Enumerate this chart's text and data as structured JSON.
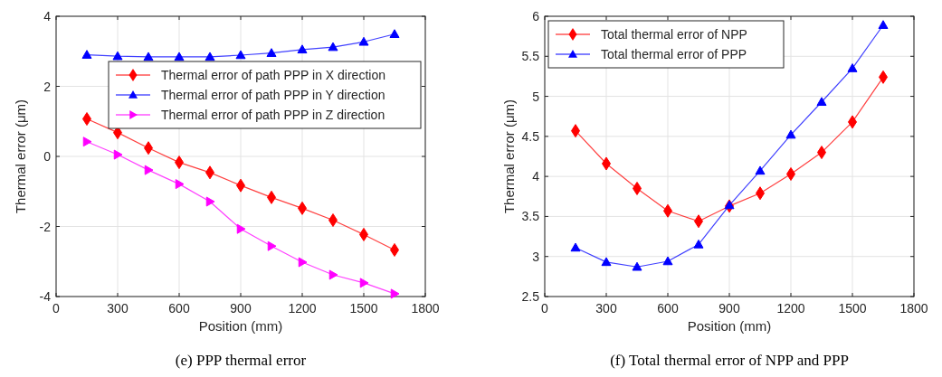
{
  "chart_data": [
    {
      "type": "line",
      "title": "(e) PPP thermal error",
      "xlabel": "Position (mm)",
      "ylabel": "Thermal error (μm)",
      "x": [
        150,
        300,
        450,
        600,
        750,
        900,
        1050,
        1200,
        1350,
        1500,
        1650
      ],
      "xlim": [
        0,
        1800
      ],
      "xticks": [
        0,
        300,
        600,
        900,
        1200,
        1500,
        1800
      ],
      "ylim": [
        -4,
        4
      ],
      "yticks": [
        -4,
        -2,
        0,
        2,
        4
      ],
      "grid": true,
      "legend": "top right",
      "series": [
        {
          "name": "Thermal error of path PPP in X direction",
          "color": "#ff0000",
          "marker": "diamond",
          "values": [
            1.07,
            0.68,
            0.24,
            -0.17,
            -0.46,
            -0.83,
            -1.17,
            -1.48,
            -1.82,
            -2.23,
            -2.67
          ]
        },
        {
          "name": "Thermal error of path PPP in Y direction",
          "color": "#0000ff",
          "marker": "triangle",
          "values": [
            2.9,
            2.86,
            2.84,
            2.84,
            2.84,
            2.89,
            2.95,
            3.05,
            3.12,
            3.27,
            3.49
          ]
        },
        {
          "name": "Thermal error of path PPP in Z direction",
          "color": "#ff00ff",
          "marker": "triangle-right",
          "values": [
            0.42,
            0.05,
            -0.39,
            -0.79,
            -1.29,
            -2.07,
            -2.56,
            -3.02,
            -3.38,
            -3.61,
            -3.92
          ]
        }
      ]
    },
    {
      "type": "line",
      "title": "(f) Total thermal error of NPP and PPP",
      "xlabel": "Position (mm)",
      "ylabel": "Thermal error  (μm)",
      "x": [
        150,
        300,
        450,
        600,
        750,
        900,
        1050,
        1200,
        1350,
        1500,
        1650
      ],
      "xlim": [
        0,
        1800
      ],
      "xticks": [
        0,
        300,
        600,
        900,
        1200,
        1500,
        1800
      ],
      "ylim": [
        2.5,
        6
      ],
      "yticks": [
        2.5,
        3,
        3.5,
        4,
        4.5,
        5,
        5.5,
        6
      ],
      "grid": true,
      "legend": "top left",
      "series": [
        {
          "name": "Total thermal error of NPP",
          "color": "#ff0000",
          "marker": "diamond",
          "values": [
            4.57,
            4.16,
            3.85,
            3.57,
            3.44,
            3.63,
            3.79,
            4.03,
            4.3,
            4.68,
            5.24
          ]
        },
        {
          "name": "Total thermal error of PPP",
          "color": "#0000ff",
          "marker": "triangle",
          "values": [
            3.11,
            2.93,
            2.87,
            2.94,
            3.15,
            3.64,
            4.07,
            4.52,
            4.93,
            5.35,
            5.89
          ]
        }
      ]
    }
  ]
}
